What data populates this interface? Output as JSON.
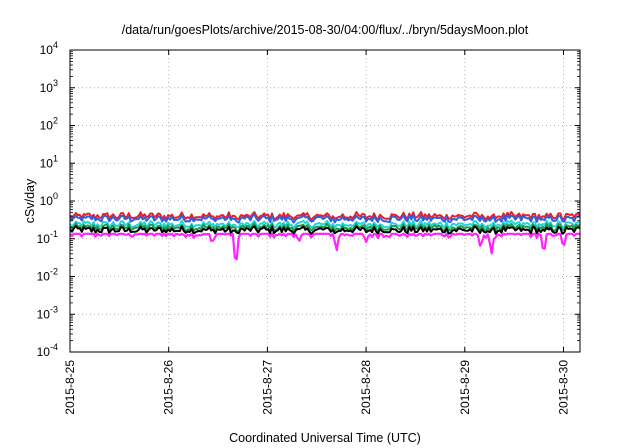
{
  "chart_data": {
    "type": "line",
    "title": "/data/run/goesPlots/archive/2015-08-30/04:00/flux/../bryn/5daysMoon.plot",
    "xlabel": "Coordinated Universal Time (UTC)",
    "ylabel": "cSv/day",
    "yscale": "log",
    "ylim": [
      0.0001,
      10000
    ],
    "xlim": [
      "2015-08-25",
      "2015-08-30 05:00"
    ],
    "grid": true,
    "x_ticks": [
      "2015-8-25",
      "2015-8-26",
      "2015-8-27",
      "2015-8-28",
      "2015-8-29",
      "2015-8-30"
    ],
    "y_ticks": [
      {
        "base": "10",
        "exp": "-4"
      },
      {
        "base": "10",
        "exp": "-3"
      },
      {
        "base": "10",
        "exp": "-2"
      },
      {
        "base": "10",
        "exp": "-1"
      },
      {
        "base": "10",
        "exp": "0"
      },
      {
        "base": "10",
        "exp": "1"
      },
      {
        "base": "10",
        "exp": "2"
      },
      {
        "base": "10",
        "exp": "3"
      },
      {
        "base": "10",
        "exp": "4"
      }
    ],
    "series": [
      {
        "color": "#e8202a",
        "level": 0.4
      },
      {
        "color": "#2f5fe0",
        "level": 0.34
      },
      {
        "color": "#20d6d6",
        "level": 0.24
      },
      {
        "color": "#1f9a4a",
        "level": 0.2
      },
      {
        "color": "#000000",
        "level": 0.17
      },
      {
        "color": "#ff22ff",
        "level": 0.135
      }
    ],
    "dips": [
      {
        "day": 1.68,
        "value": 0.016
      },
      {
        "day": 1.44,
        "value": 0.08
      },
      {
        "day": 2.32,
        "value": 0.09
      },
      {
        "day": 2.7,
        "value": 0.05
      },
      {
        "day": 3.0,
        "value": 0.09
      },
      {
        "day": 4.16,
        "value": 0.06
      },
      {
        "day": 4.27,
        "value": 0.04
      },
      {
        "day": 4.8,
        "value": 0.04
      },
      {
        "day": 5.0,
        "value": 0.06
      },
      {
        "day": 5.2,
        "value": 0.08
      }
    ]
  }
}
